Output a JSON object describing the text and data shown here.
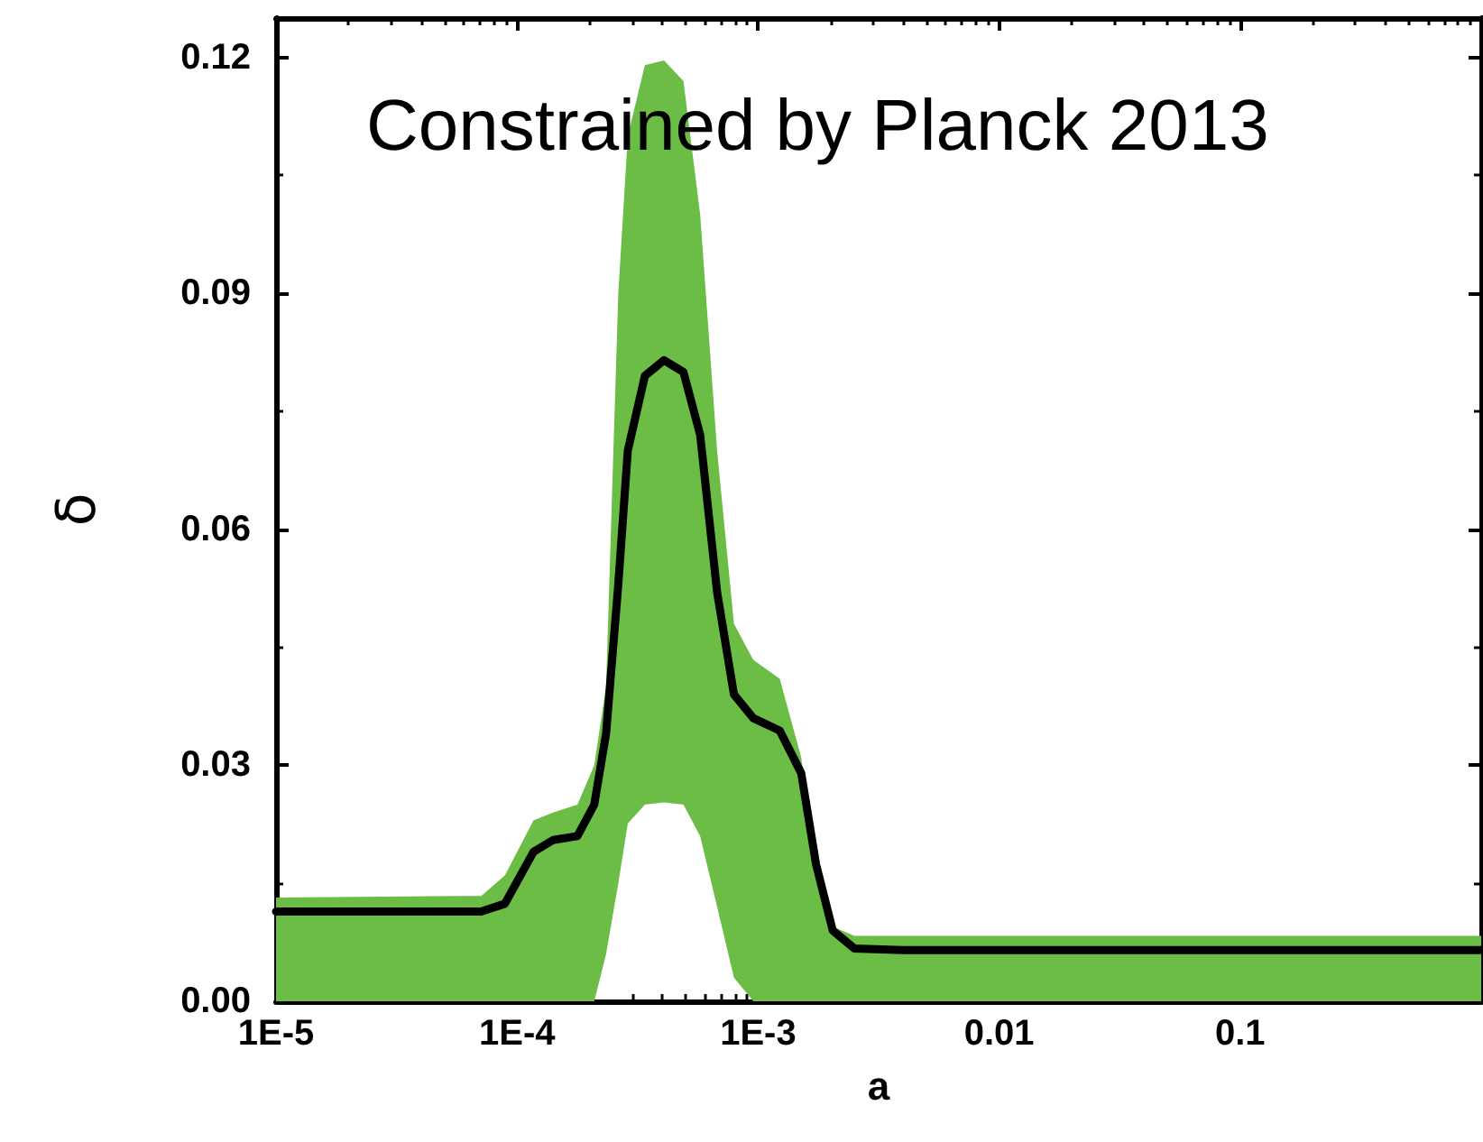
{
  "chart_data": {
    "type": "line",
    "xlabel": "a",
    "ylabel": "δ",
    "log": "x",
    "annotations": [
      "Constrained by Planck 2013"
    ],
    "xlim": [
      1e-05,
      1
    ],
    "xticks": [
      {
        "value": 1e-05,
        "label": "1E-5"
      },
      {
        "value": 0.0001,
        "label": "1E-4"
      },
      {
        "value": 0.001,
        "label": "1E-3"
      },
      0.01,
      0.1
    ],
    "ylim": [
      0,
      0.125
    ],
    "yticks": [
      {
        "value": 0,
        "label": "0.00"
      },
      {
        "value": 0.03,
        "label": "0.03"
      },
      {
        "value": 0.06,
        "label": "0.06"
      },
      {
        "value": 0.09,
        "label": "0.09"
      },
      {
        "value": 0.12,
        "label": "0.12"
      }
    ],
    "grid": false,
    "marker": "none",
    "line_style": "solid",
    "series": [
      {
        "color": "#000000",
        "upper": [
          0.0132,
          0.0134,
          0.016,
          0.023,
          0.024,
          0.025,
          0.03,
          0.04,
          0.09,
          0.11,
          0.119,
          0.1196,
          0.117,
          0.1,
          0.07,
          0.048,
          0.0434,
          0.041,
          0.031,
          0.016,
          0.0095,
          0.0083,
          0.0083,
          0.0083
        ],
        "lower": [
          0,
          0,
          0,
          0,
          0,
          0,
          0,
          0.006,
          0.015,
          0.0226,
          0.025,
          0.0253,
          0.025,
          0.021,
          0.012,
          0.003,
          0,
          0,
          0,
          0,
          0,
          0,
          0,
          0
        ],
        "x": [
          1e-05,
          7.1e-05,
          8.9e-05,
          0.000117,
          0.000141,
          0.000178,
          0.000209,
          0.000234,
          0.000263,
          0.000288,
          0.000339,
          0.000407,
          0.00049,
          0.000575,
          0.000676,
          0.000794,
          0.000955,
          0.00123,
          0.00151,
          0.00174,
          0.00204,
          0.00251,
          0.00398,
          1
        ],
        "values": [
          0.0114,
          0.0114,
          0.0124,
          0.019,
          0.0205,
          0.021,
          0.025,
          0.034,
          0.053,
          0.07,
          0.0795,
          0.0815,
          0.08,
          0.072,
          0.052,
          0.039,
          0.036,
          0.0344,
          0.029,
          0.0174,
          0.009,
          0.0067,
          0.0065,
          0.0065
        ]
      }
    ]
  }
}
